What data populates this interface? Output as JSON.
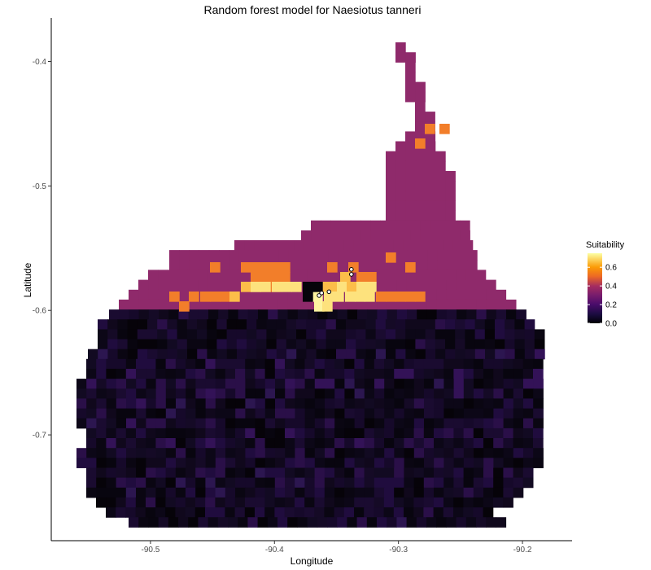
{
  "chart_data": {
    "type": "heatmap",
    "title": "Random forest model for Naesiotus tanneri",
    "xlabel": "Longitude",
    "ylabel": "Latitude",
    "x_ticks": [
      -90.5,
      -90.4,
      -90.3,
      -90.2
    ],
    "x_tick_labels": [
      "-90.5",
      "-90.4",
      "-90.3",
      "-90.2"
    ],
    "y_ticks": [
      -0.4,
      -0.5,
      -0.6,
      -0.7
    ],
    "y_tick_labels": [
      "-0.4",
      "-0.5",
      "-0.6",
      "-0.7"
    ],
    "xlim": [
      -90.58,
      -90.16
    ],
    "ylim": [
      -0.785,
      -0.365
    ],
    "grid": false,
    "colormap": "inferno",
    "legend": {
      "title": "Suitability",
      "position": "right",
      "range": [
        0,
        0.75
      ],
      "ticks": [
        0.0,
        0.2,
        0.4,
        0.6
      ],
      "tick_labels": [
        "0.0",
        "0.2",
        "0.4",
        "0.6"
      ]
    },
    "occurrence_points": [
      {
        "lon": -90.364,
        "lat": -0.588
      },
      {
        "lon": -90.362,
        "lat": -0.586
      },
      {
        "lon": -90.356,
        "lat": -0.585
      },
      {
        "lon": -90.338,
        "lat": -0.567
      },
      {
        "lon": -90.338,
        "lat": -0.571
      }
    ],
    "colors": {
      "suitability_0_0": "#000004",
      "suitability_0_1": "#180c3c",
      "suitability_0_2": "#420a68",
      "suitability_0_3": "#932667",
      "suitability_0_5": "#dd513a",
      "suitability_0_6": "#fca50a",
      "suitability_0_75": "#fcffa4"
    }
  }
}
